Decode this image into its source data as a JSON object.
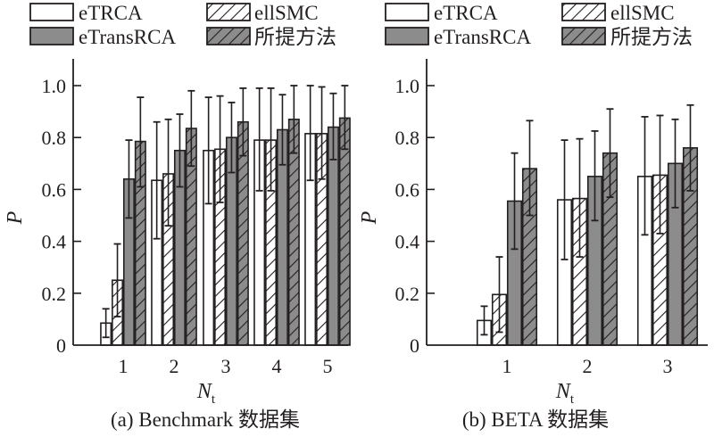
{
  "legend": {
    "items": [
      {
        "label": "eTRCA",
        "style": "white"
      },
      {
        "label": "ellSMC",
        "style": "white-hatch"
      },
      {
        "label": "eTransRCA",
        "style": "gray"
      },
      {
        "label": "所提方法",
        "style": "gray-hatch"
      }
    ]
  },
  "colors": {
    "gray": "#8c8c8c",
    "outline": "#231f20",
    "white": "#ffffff"
  },
  "chart_data": [
    {
      "type": "bar",
      "title": "(a) Benchmark 数据集",
      "xlabel": "N",
      "xlabel_sub": "t",
      "ylabel": "P",
      "ylim": [
        0,
        1.1
      ],
      "yticks": [
        "0",
        "0.2",
        "0.4",
        "0.6",
        "0.8",
        "1.0"
      ],
      "ytick_values": [
        0,
        0.2,
        0.4,
        0.6,
        0.8,
        1.0
      ],
      "categories": [
        "1",
        "2",
        "3",
        "4",
        "5"
      ],
      "series": [
        {
          "name": "eTRCA",
          "values": [
            0.085,
            0.635,
            0.75,
            0.79,
            0.815
          ],
          "err_low": [
            0.03,
            0.41,
            0.545,
            0.595,
            0.635
          ],
          "err_high": [
            0.14,
            0.86,
            0.955,
            0.99,
            1.0
          ]
        },
        {
          "name": "ellSMC",
          "values": [
            0.25,
            0.66,
            0.755,
            0.79,
            0.815
          ],
          "err_low": [
            0.11,
            0.46,
            0.55,
            0.595,
            0.64
          ],
          "err_high": [
            0.39,
            0.87,
            0.96,
            0.99,
            0.995
          ]
        },
        {
          "name": "eTransRCA",
          "values": [
            0.64,
            0.75,
            0.8,
            0.83,
            0.84
          ],
          "err_low": [
            0.49,
            0.61,
            0.665,
            0.695,
            0.715
          ],
          "err_high": [
            0.79,
            0.89,
            0.935,
            0.965,
            0.97
          ]
        },
        {
          "name": "所提方法",
          "values": [
            0.785,
            0.835,
            0.86,
            0.87,
            0.875
          ],
          "err_low": [
            0.61,
            0.69,
            0.73,
            0.74,
            0.755
          ],
          "err_high": [
            0.955,
            0.98,
            0.99,
            1.0,
            1.0
          ]
        }
      ],
      "grid": false,
      "legend": "top"
    },
    {
      "type": "bar",
      "title": "(b) BETA 数据集",
      "xlabel": "N",
      "xlabel_sub": "t",
      "ylabel": "P",
      "ylim": [
        0,
        1.1
      ],
      "yticks": [
        "0",
        "0.2",
        "0.4",
        "0.6",
        "0.8",
        "1.0"
      ],
      "ytick_values": [
        0,
        0.2,
        0.4,
        0.6,
        0.8,
        1.0
      ],
      "categories": [
        "1",
        "2",
        "3"
      ],
      "series": [
        {
          "name": "eTRCA",
          "values": [
            0.095,
            0.56,
            0.65
          ],
          "err_low": [
            0.04,
            0.33,
            0.425
          ],
          "err_high": [
            0.15,
            0.79,
            0.88
          ]
        },
        {
          "name": "ellSMC",
          "values": [
            0.195,
            0.565,
            0.655
          ],
          "err_low": [
            0.05,
            0.34,
            0.43
          ],
          "err_high": [
            0.34,
            0.795,
            0.885
          ]
        },
        {
          "name": "eTransRCA",
          "values": [
            0.555,
            0.65,
            0.7
          ],
          "err_low": [
            0.37,
            0.48,
            0.53
          ],
          "err_high": [
            0.74,
            0.825,
            0.87
          ]
        },
        {
          "name": "所提方法",
          "values": [
            0.68,
            0.74,
            0.76
          ],
          "err_low": [
            0.5,
            0.57,
            0.595
          ],
          "err_high": [
            0.865,
            0.91,
            0.925
          ]
        }
      ],
      "grid": false,
      "legend": "top"
    }
  ]
}
